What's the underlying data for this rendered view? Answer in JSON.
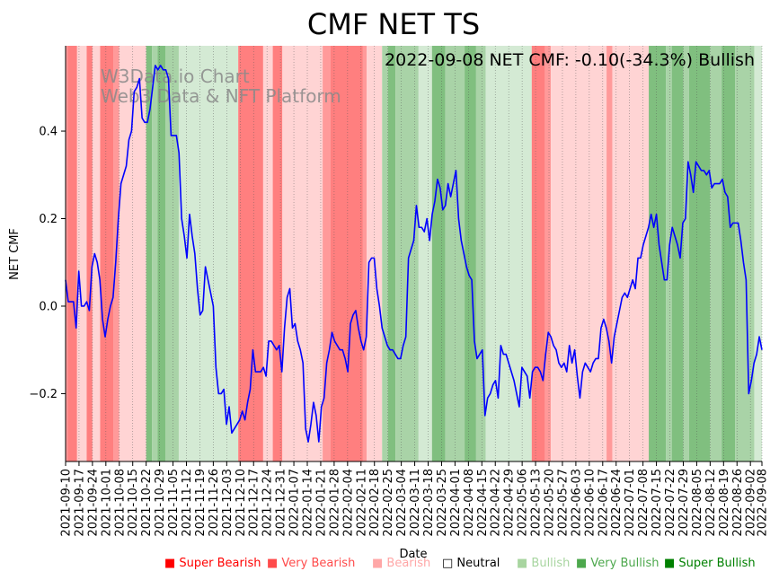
{
  "chart_data": {
    "type": "line",
    "title": "CMF NET TS",
    "subtitle": "2022-09-08 NET CMF: -0.10(-34.3%) Bullish",
    "xlabel": "Date",
    "ylabel": "NET CMF",
    "xlim": [
      "2021-09-10",
      "2022-09-08"
    ],
    "ylim": [
      -0.355,
      0.595
    ],
    "y_ticks": [
      "0.4",
      "0.2",
      "0.0",
      "−0.2"
    ],
    "y_tick_values": [
      0.4,
      0.2,
      0.0,
      -0.2
    ],
    "x_ticks": [
      "2021-09-10",
      "2021-09-17",
      "2021-09-24",
      "2021-10-01",
      "2021-10-08",
      "2021-10-15",
      "2021-10-22",
      "2021-10-29",
      "2021-11-05",
      "2021-11-12",
      "2021-11-19",
      "2021-11-26",
      "2021-12-03",
      "2021-12-10",
      "2021-12-17",
      "2021-12-24",
      "2021-12-31",
      "2022-01-07",
      "2022-01-14",
      "2022-01-21",
      "2022-01-28",
      "2022-02-04",
      "2022-02-11",
      "2022-02-18",
      "2022-02-25",
      "2022-03-04",
      "2022-03-11",
      "2022-03-18",
      "2022-03-25",
      "2022-04-01",
      "2022-04-08",
      "2022-04-15",
      "2022-04-22",
      "2022-04-29",
      "2022-05-06",
      "2022-05-13",
      "2022-05-20",
      "2022-05-27",
      "2022-06-03",
      "2022-06-10",
      "2022-06-17",
      "2022-06-24",
      "2022-07-01",
      "2022-07-08",
      "2022-07-15",
      "2022-07-22",
      "2022-07-29",
      "2022-08-05",
      "2022-08-12",
      "2022-08-19",
      "2022-08-26",
      "2022-09-02",
      "2022-09-08"
    ],
    "watermark": [
      "W3Data.io Chart",
      "Web3 Data & NFT Platform"
    ],
    "series": [
      {
        "name": "NET CMF",
        "color": "#0000ff",
        "values": [
          0.06,
          0.01,
          0.01,
          0.01,
          -0.05,
          0.08,
          0.0,
          0.0,
          0.01,
          -0.01,
          0.09,
          0.12,
          0.1,
          0.06,
          -0.03,
          -0.07,
          -0.03,
          0.0,
          0.02,
          0.1,
          0.2,
          0.28,
          0.3,
          0.32,
          0.38,
          0.4,
          0.49,
          0.5,
          0.52,
          0.43,
          0.42,
          0.42,
          0.45,
          0.5,
          0.55,
          0.54,
          0.55,
          0.54,
          0.54,
          0.52,
          0.39,
          0.39,
          0.39,
          0.35,
          0.2,
          0.16,
          0.11,
          0.21,
          0.16,
          0.12,
          0.04,
          -0.02,
          -0.01,
          0.09,
          0.06,
          0.03,
          0.0,
          -0.14,
          -0.2,
          -0.2,
          -0.19,
          -0.27,
          -0.23,
          -0.29,
          -0.28,
          -0.27,
          -0.26,
          -0.24,
          -0.26,
          -0.22,
          -0.19,
          -0.1,
          -0.15,
          -0.15,
          -0.15,
          -0.14,
          -0.16,
          -0.08,
          -0.08,
          -0.09,
          -0.1,
          -0.09,
          -0.15,
          -0.05,
          0.02,
          0.04,
          -0.05,
          -0.04,
          -0.08,
          -0.1,
          -0.13,
          -0.28,
          -0.31,
          -0.27,
          -0.22,
          -0.25,
          -0.31,
          -0.23,
          -0.21,
          -0.13,
          -0.1,
          -0.06,
          -0.08,
          -0.09,
          -0.1,
          -0.1,
          -0.12,
          -0.15,
          -0.04,
          -0.02,
          -0.01,
          -0.05,
          -0.08,
          -0.1,
          -0.07,
          0.1,
          0.11,
          0.11,
          0.04,
          0.0,
          -0.05,
          -0.07,
          -0.09,
          -0.1,
          -0.1,
          -0.11,
          -0.12,
          -0.12,
          -0.09,
          -0.07,
          0.11,
          0.13,
          0.15,
          0.23,
          0.18,
          0.18,
          0.17,
          0.2,
          0.15,
          0.21,
          0.24,
          0.29,
          0.27,
          0.22,
          0.23,
          0.28,
          0.25,
          0.28,
          0.31,
          0.2,
          0.15,
          0.12,
          0.09,
          0.07,
          0.06,
          -0.08,
          -0.12,
          -0.11,
          -0.1,
          -0.25,
          -0.21,
          -0.2,
          -0.18,
          -0.17,
          -0.21,
          -0.09,
          -0.11,
          -0.11,
          -0.13,
          -0.15,
          -0.17,
          -0.2,
          -0.23,
          -0.14,
          -0.15,
          -0.16,
          -0.21,
          -0.15,
          -0.14,
          -0.14,
          -0.15,
          -0.17,
          -0.11,
          -0.06,
          -0.07,
          -0.09,
          -0.1,
          -0.13,
          -0.14,
          -0.13,
          -0.15,
          -0.09,
          -0.13,
          -0.1,
          -0.16,
          -0.21,
          -0.15,
          -0.13,
          -0.14,
          -0.15,
          -0.13,
          -0.12,
          -0.12,
          -0.05,
          -0.03,
          -0.05,
          -0.08,
          -0.13,
          -0.07,
          -0.04,
          -0.01,
          0.02,
          0.03,
          0.02,
          0.04,
          0.06,
          0.04,
          0.11,
          0.11,
          0.14,
          0.16,
          0.18,
          0.21,
          0.18,
          0.21,
          0.14,
          0.1,
          0.06,
          0.06,
          0.14,
          0.18,
          0.16,
          0.14,
          0.11,
          0.19,
          0.2,
          0.33,
          0.3,
          0.26,
          0.33,
          0.32,
          0.31,
          0.31,
          0.3,
          0.31,
          0.27,
          0.28,
          0.28,
          0.28,
          0.29,
          0.26,
          0.25,
          0.18,
          0.19,
          0.19,
          0.19,
          0.15,
          0.1,
          0.06,
          -0.2,
          -0.17,
          -0.13,
          -0.11,
          -0.07,
          -0.1
        ]
      }
    ],
    "regimes": [
      {
        "start": "2021-09-10",
        "end": "2021-09-11",
        "level": "very_bearish"
      },
      {
        "start": "2021-09-11",
        "end": "2021-09-16",
        "level": "super_bearish"
      },
      {
        "start": "2021-09-16",
        "end": "2021-09-21",
        "level": "bearish"
      },
      {
        "start": "2021-09-21",
        "end": "2021-09-24",
        "level": "super_bearish"
      },
      {
        "start": "2021-09-24",
        "end": "2021-09-28",
        "level": "bearish"
      },
      {
        "start": "2021-09-28",
        "end": "2021-10-05",
        "level": "super_bearish"
      },
      {
        "start": "2021-10-05",
        "end": "2021-10-08",
        "level": "very_bearish"
      },
      {
        "start": "2021-10-08",
        "end": "2021-10-22",
        "level": "bearish"
      },
      {
        "start": "2021-10-22",
        "end": "2021-10-25",
        "level": "very_bullish"
      },
      {
        "start": "2021-10-25",
        "end": "2021-10-28",
        "level": "bullish"
      },
      {
        "start": "2021-10-28",
        "end": "2021-11-01",
        "level": "very_bullish"
      },
      {
        "start": "2021-11-01",
        "end": "2021-11-08",
        "level": "bullish"
      },
      {
        "start": "2021-11-08",
        "end": "2021-12-09",
        "level": "neutral"
      },
      {
        "start": "2021-12-09",
        "end": "2021-12-22",
        "level": "super_bearish"
      },
      {
        "start": "2021-12-22",
        "end": "2021-12-27",
        "level": "bearish"
      },
      {
        "start": "2021-12-27",
        "end": "2022-01-01",
        "level": "super_bearish"
      },
      {
        "start": "2022-01-01",
        "end": "2022-01-22",
        "level": "bearish"
      },
      {
        "start": "2022-01-22",
        "end": "2022-01-26",
        "level": "very_bearish"
      },
      {
        "start": "2022-01-26",
        "end": "2022-02-12",
        "level": "super_bearish"
      },
      {
        "start": "2022-02-12",
        "end": "2022-02-14",
        "level": "very_bearish"
      },
      {
        "start": "2022-02-14",
        "end": "2022-02-22",
        "level": "bearish"
      },
      {
        "start": "2022-02-22",
        "end": "2022-02-25",
        "level": "bullish"
      },
      {
        "start": "2022-02-25",
        "end": "2022-03-01",
        "level": "very_bullish"
      },
      {
        "start": "2022-03-01",
        "end": "2022-03-13",
        "level": "bullish"
      },
      {
        "start": "2022-03-13",
        "end": "2022-03-20",
        "level": "neutral"
      },
      {
        "start": "2022-03-20",
        "end": "2022-03-27",
        "level": "very_bullish"
      },
      {
        "start": "2022-03-27",
        "end": "2022-04-06",
        "level": "bullish"
      },
      {
        "start": "2022-04-06",
        "end": "2022-04-12",
        "level": "very_bullish"
      },
      {
        "start": "2022-04-12",
        "end": "2022-04-17",
        "level": "bullish"
      },
      {
        "start": "2022-04-17",
        "end": "2022-05-11",
        "level": "neutral"
      },
      {
        "start": "2022-05-11",
        "end": "2022-05-18",
        "level": "super_bearish"
      },
      {
        "start": "2022-05-18",
        "end": "2022-05-21",
        "level": "very_bearish"
      },
      {
        "start": "2022-05-21",
        "end": "2022-06-19",
        "level": "bearish"
      },
      {
        "start": "2022-06-19",
        "end": "2022-06-22",
        "level": "very_bearish"
      },
      {
        "start": "2022-06-22",
        "end": "2022-07-11",
        "level": "bearish"
      },
      {
        "start": "2022-07-11",
        "end": "2022-07-20",
        "level": "very_bullish"
      },
      {
        "start": "2022-07-20",
        "end": "2022-07-23",
        "level": "bullish"
      },
      {
        "start": "2022-07-23",
        "end": "2022-07-29",
        "level": "very_bullish"
      },
      {
        "start": "2022-07-29",
        "end": "2022-08-01",
        "level": "bullish"
      },
      {
        "start": "2022-08-01",
        "end": "2022-08-12",
        "level": "very_bullish"
      },
      {
        "start": "2022-08-12",
        "end": "2022-08-18",
        "level": "bullish"
      },
      {
        "start": "2022-08-18",
        "end": "2022-08-25",
        "level": "very_bullish"
      },
      {
        "start": "2022-08-25",
        "end": "2022-09-04",
        "level": "bullish"
      },
      {
        "start": "2022-09-04",
        "end": "2022-09-08",
        "level": "neutral"
      }
    ],
    "regime_colors": {
      "super_bearish": "#ff7f7f",
      "very_bearish": "#ff9a9a",
      "bearish": "#ffd4d4",
      "neutral": "#d4ead4",
      "bullish": "#a9d3a7",
      "very_bullish": "#80bf7f"
    },
    "legend": [
      {
        "label": "Super Bearish",
        "color": "#ff0000",
        "marker": "■"
      },
      {
        "label": "Very Bearish",
        "color": "#ff4b4b",
        "marker": "■"
      },
      {
        "label": "Bearish",
        "color": "#ffa7a7",
        "marker": "■"
      },
      {
        "label": "Neutral",
        "color": "#000000",
        "marker": "□"
      },
      {
        "label": "Bullish",
        "color": "#a8d5a0",
        "marker": "■"
      },
      {
        "label": "Very Bullish",
        "color": "#4da84d",
        "marker": "■"
      },
      {
        "label": "Super Bullish",
        "color": "#008000",
        "marker": "■"
      }
    ]
  }
}
